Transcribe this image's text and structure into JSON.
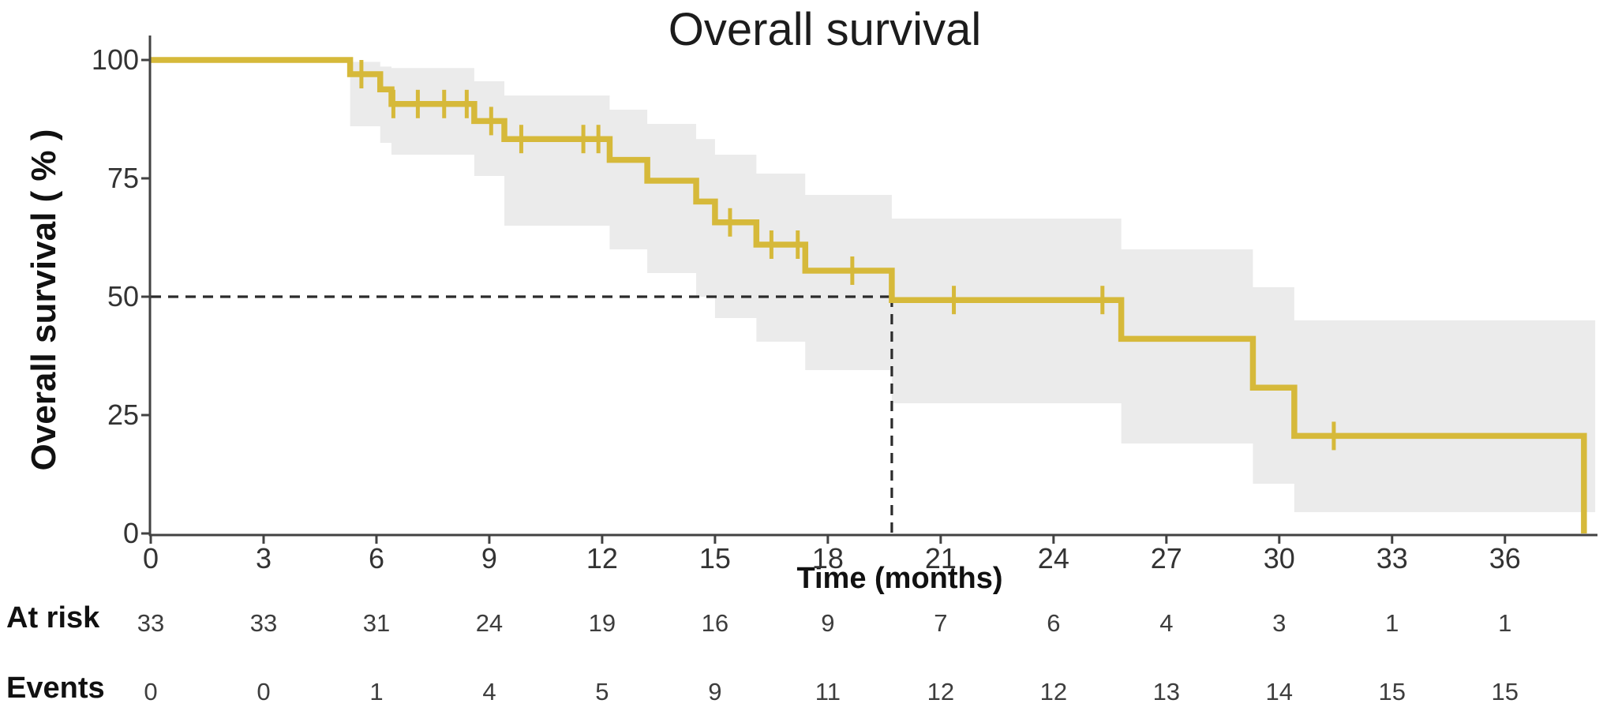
{
  "title": "Overall survival",
  "chart_data": {
    "type": "line",
    "subtype": "kaplan-meier-step",
    "title": "Overall survival",
    "xlabel": "Time (months)",
    "ylabel": "Overall survival ( % )",
    "xlim": [
      0,
      38.4
    ],
    "ylim": [
      0,
      100
    ],
    "x_ticks": [
      0,
      3,
      6,
      9,
      12,
      15,
      18,
      21,
      24,
      27,
      30,
      33,
      36
    ],
    "y_ticks": [
      0,
      25,
      50,
      75,
      100
    ],
    "grid": false,
    "legend_position": "none",
    "series": [
      {
        "name": "Overall survival",
        "color": "#d6b93a",
        "steps": [
          [
            0,
            100
          ],
          [
            5.3,
            97.0
          ],
          [
            6.1,
            93.8
          ],
          [
            6.4,
            90.7
          ],
          [
            8.6,
            87.1
          ],
          [
            9.4,
            83.3
          ],
          [
            12.2,
            78.9
          ],
          [
            13.2,
            74.5
          ],
          [
            14.5,
            70.1
          ],
          [
            15.0,
            65.7
          ],
          [
            16.1,
            61.0
          ],
          [
            17.4,
            55.5
          ],
          [
            19.7,
            49.3
          ],
          [
            25.8,
            41.1
          ],
          [
            29.3,
            30.8
          ],
          [
            30.4,
            20.6
          ],
          [
            38.1,
            0
          ]
        ],
        "censor_marks": [
          [
            5.6,
            97.0
          ],
          [
            6.45,
            90.7
          ],
          [
            7.1,
            90.7
          ],
          [
            7.8,
            90.7
          ],
          [
            8.4,
            90.7
          ],
          [
            9.05,
            87.1
          ],
          [
            9.85,
            83.3
          ],
          [
            11.5,
            83.3
          ],
          [
            11.9,
            83.3
          ],
          [
            15.4,
            65.7
          ],
          [
            16.5,
            61.0
          ],
          [
            17.2,
            61.0
          ],
          [
            18.65,
            55.5
          ],
          [
            21.35,
            49.3
          ],
          [
            25.3,
            49.3
          ],
          [
            31.45,
            20.6
          ]
        ],
        "ci_segments": [
          [
            5.3,
            6.1,
            86.0,
            99.6
          ],
          [
            6.1,
            6.4,
            82.5,
            98.6
          ],
          [
            6.4,
            8.6,
            80.0,
            98.3
          ],
          [
            8.6,
            9.4,
            75.5,
            95.5
          ],
          [
            9.4,
            12.2,
            65.0,
            92.5
          ],
          [
            12.2,
            13.2,
            60.0,
            89.5
          ],
          [
            13.2,
            14.5,
            55.0,
            86.5
          ],
          [
            14.5,
            15.0,
            50.0,
            83.3
          ],
          [
            15.0,
            16.1,
            45.5,
            80.0
          ],
          [
            16.1,
            17.4,
            40.5,
            76.0
          ],
          [
            17.4,
            19.7,
            34.5,
            71.5
          ],
          [
            19.7,
            25.8,
            27.5,
            66.5
          ],
          [
            25.8,
            29.3,
            19.0,
            60.0
          ],
          [
            29.3,
            30.4,
            10.5,
            52.0
          ],
          [
            30.4,
            38.4,
            4.5,
            45.0
          ]
        ]
      }
    ],
    "median_annotation": {
      "time_months": 19.7,
      "survival_pct": 50,
      "style": "dashed"
    },
    "colors": {
      "curve": "#d6b93a",
      "ci_band": "#ebebeb",
      "axis": "#424242",
      "dashed_line": "#2b2b2b",
      "tick_text": "#333333",
      "label_text": "#111111"
    }
  },
  "risk_table": {
    "time_points": [
      0,
      3,
      6,
      9,
      12,
      15,
      18,
      21,
      24,
      27,
      30,
      33,
      36
    ],
    "rows": [
      {
        "label": "At risk",
        "values": [
          33,
          33,
          31,
          24,
          19,
          16,
          9,
          7,
          6,
          4,
          3,
          1,
          1
        ]
      },
      {
        "label": "Events",
        "values": [
          0,
          0,
          1,
          4,
          5,
          9,
          11,
          12,
          12,
          13,
          14,
          15,
          15
        ]
      }
    ]
  }
}
